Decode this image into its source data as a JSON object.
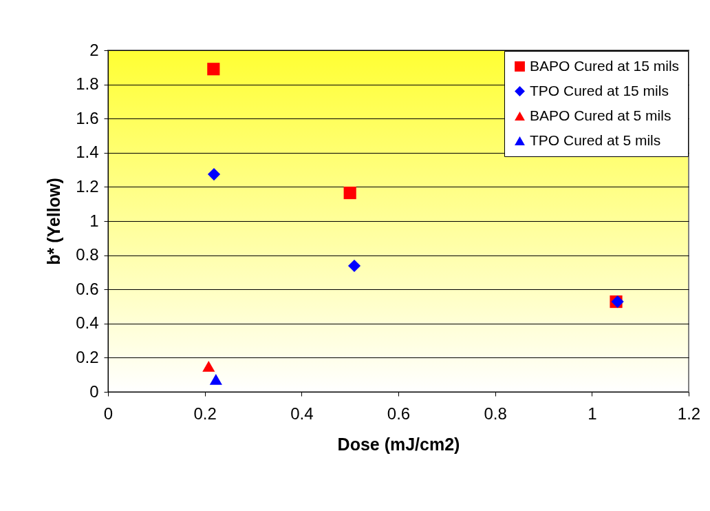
{
  "chart_data": {
    "type": "scatter",
    "xlabel": "Dose (mJ/cm2)",
    "ylabel": "b* (Yellow)",
    "xlim": [
      0,
      1.2
    ],
    "xticks": [
      0,
      0.2,
      0.4,
      0.6,
      0.8,
      1,
      1.2
    ],
    "ylim": [
      0,
      2
    ],
    "yticks": [
      0,
      0.2,
      0.4,
      0.6,
      0.8,
      1,
      1.2,
      1.4,
      1.6,
      1.8,
      2
    ],
    "grid": "y",
    "legend": "top right",
    "series": [
      {
        "name": "BAPO Cured at 15 mils",
        "color": "#ff0000",
        "marker": "square",
        "x": [
          0.218,
          0.5,
          1.05
        ],
        "values": [
          1.89,
          1.165,
          0.528
        ]
      },
      {
        "name": "TPO Cured at 15 mils",
        "color": "#0000ff",
        "marker": "diamond",
        "x": [
          0.219,
          0.509,
          1.053
        ],
        "values": [
          1.274,
          0.738,
          0.528
        ]
      },
      {
        "name": "BAPO Cured at 5 mils",
        "color": "#ff0000",
        "marker": "triangle",
        "x": [
          0.208
        ],
        "values": [
          0.15
        ]
      },
      {
        "name": "TPO Cured at 5 mils",
        "color": "#0000ff",
        "marker": "triangle",
        "x": [
          0.223
        ],
        "values": [
          0.073
        ]
      }
    ]
  }
}
